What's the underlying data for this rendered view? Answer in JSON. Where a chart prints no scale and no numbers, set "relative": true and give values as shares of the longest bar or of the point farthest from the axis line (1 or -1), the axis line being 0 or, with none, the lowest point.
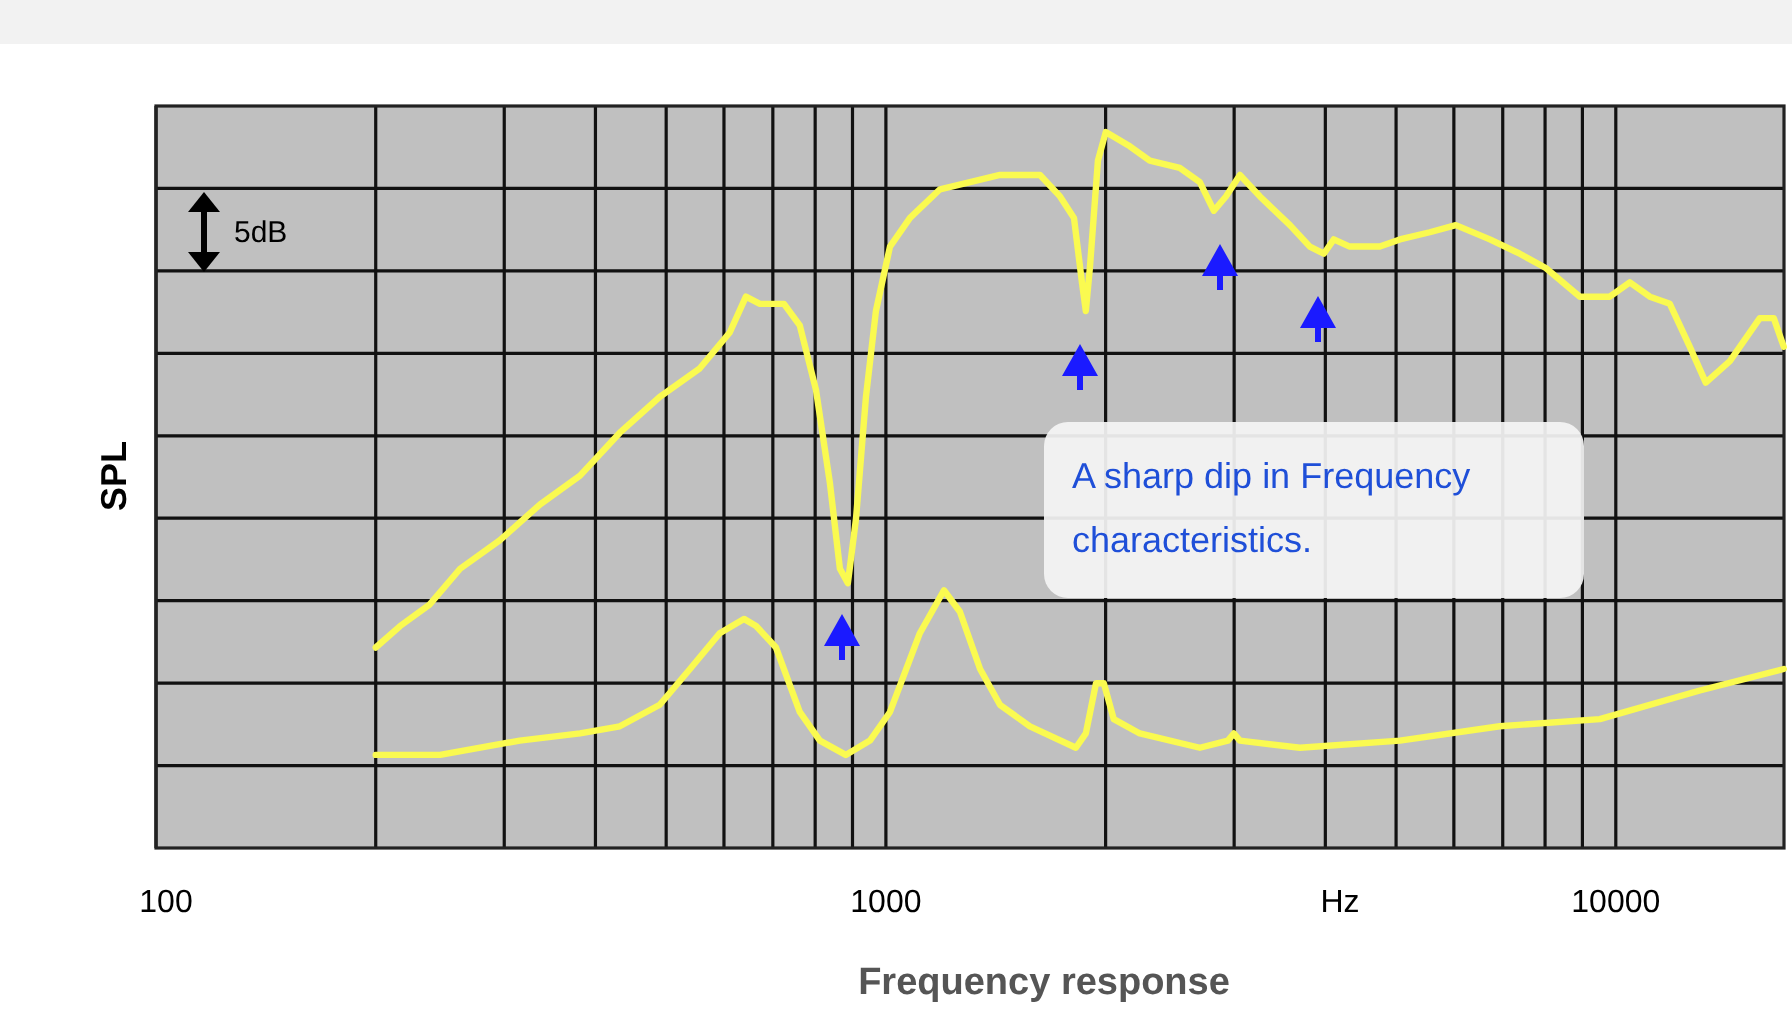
{
  "chart_data": {
    "type": "line",
    "xlabel": "Frequency response",
    "ylabel": "SPL",
    "log": "x",
    "relative": true,
    "grid": true,
    "line_style": "solid",
    "xlim": [
      100,
      17000
    ],
    "xticks": [
      100,
      {
        "value": 200,
        "label": null
      },
      {
        "value": 300,
        "label": null
      },
      {
        "value": 400,
        "label": null
      },
      {
        "value": 500,
        "label": null
      },
      {
        "value": 600,
        "label": null
      },
      {
        "value": 700,
        "label": null
      },
      {
        "value": 800,
        "label": null
      },
      {
        "value": 900,
        "label": null
      },
      1000,
      {
        "value": 2000,
        "label": null
      },
      {
        "value": 3000,
        "label": null
      },
      {
        "value": 4000,
        "label": null
      },
      {
        "value": 5000,
        "label": null
      },
      {
        "value": 6000,
        "label": null
      },
      {
        "value": 7000,
        "label": null
      },
      {
        "value": 8000,
        "label": null
      },
      {
        "value": 9000,
        "label": null
      },
      10000
    ],
    "annotations": [
      "A sharp dip in Frequency characteristics.",
      "5dB",
      "Hz"
    ],
    "series": [
      {
        "color": "#fafa50",
        "x": [
          200,
          216,
          237,
          261,
          296,
          336,
          381,
          432,
          490,
          556,
          611,
          643,
          672,
          725,
          762,
          802,
          838,
          865,
          887,
          910,
          939,
          969,
          1013,
          1079,
          1186,
          1304,
          1433,
          1526,
          1626,
          1732,
          1810,
          1856,
          1879,
          1903,
          1952,
          2001,
          2159,
          2299,
          2527,
          2692,
          2814,
          2923,
          3055,
          3254,
          3577,
          3809,
          3981,
          4108,
          4320,
          4750,
          5060,
          5561,
          6037,
          6721,
          7387,
          8018,
          8928,
          9509,
          9812,
          10452,
          11134,
          11858,
          12632,
          13282,
          14330,
          15751,
          16461,
          16988
        ],
        "values": [
          0.28,
          0.31,
          0.34,
          0.39,
          0.43,
          0.48,
          0.52,
          0.58,
          0.63,
          0.67,
          0.72,
          0.77,
          0.76,
          0.76,
          0.73,
          0.64,
          0.51,
          0.39,
          0.37,
          0.46,
          0.63,
          0.75,
          0.84,
          0.88,
          0.92,
          0.93,
          0.94,
          0.94,
          0.94,
          0.91,
          0.88,
          0.79,
          0.75,
          0.81,
          0.96,
          1,
          0.98,
          0.96,
          0.95,
          0.93,
          0.89,
          0.91,
          0.94,
          0.91,
          0.87,
          0.84,
          0.83,
          0.85,
          0.84,
          0.84,
          0.85,
          0.86,
          0.87,
          0.85,
          0.83,
          0.81,
          0.77,
          0.77,
          0.77,
          0.79,
          0.77,
          0.76,
          0.7,
          0.65,
          0.68,
          0.74,
          0.74,
          0.7
        ]
      },
      {
        "color": "#fafa50",
        "x": [
          200,
          245,
          315,
          381,
          432,
          490,
          539,
          592,
          639,
          664,
          707,
          762,
          812,
          881,
          951,
          1013,
          1113,
          1201,
          1263,
          1346,
          1433,
          1575,
          1821,
          1879,
          1940,
          1989,
          2052,
          2228,
          2692,
          2941,
          2997,
          3055,
          3692,
          5060,
          6936,
          9509,
          13036,
          16988
        ],
        "values": [
          0.13,
          0.13,
          0.15,
          0.16,
          0.17,
          0.2,
          0.25,
          0.3,
          0.32,
          0.31,
          0.28,
          0.19,
          0.15,
          0.13,
          0.15,
          0.19,
          0.3,
          0.36,
          0.33,
          0.25,
          0.2,
          0.17,
          0.14,
          0.16,
          0.23,
          0.23,
          0.18,
          0.16,
          0.14,
          0.15,
          0.16,
          0.15,
          0.14,
          0.15,
          0.17,
          0.18,
          0.22,
          0.25
        ]
      }
    ]
  }
}
